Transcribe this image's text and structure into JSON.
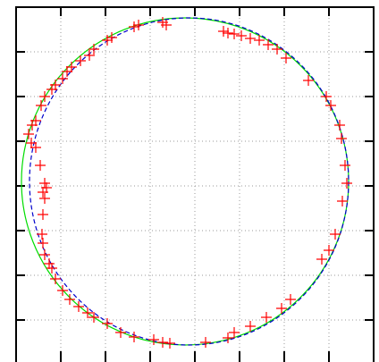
{
  "chart_data": {
    "type": "scatter",
    "color": "#ff0000",
    "x": [
      132,
      137,
      164,
      168,
      107,
      102,
      87,
      82,
      72,
      62,
      57,
      52,
      44,
      40,
      32,
      28,
      22,
      18,
      14,
      17,
      22,
      27,
      32,
      34,
      30,
      32,
      30,
      29,
      30,
      32,
      37,
      40,
      44,
      52,
      60,
      70,
      80,
      87,
      102,
      117,
      132,
      154,
      164,
      172,
      212,
      237,
      244,
      262,
      280,
      297,
      307,
      342,
      350,
      357,
      365,
      370,
      368,
      364,
      362,
      352,
      347,
      327,
      302,
      292,
      282,
      272,
      262,
      252,
      237,
      232,
      244
    ],
    "values": [
      378,
      380,
      383,
      380,
      366,
      363,
      353,
      346,
      340,
      333,
      328,
      320,
      313,
      308,
      300,
      290,
      273,
      268,
      258,
      248,
      243,
      223,
      203,
      198,
      193,
      186,
      168,
      146,
      136,
      123,
      113,
      108,
      96,
      83,
      73,
      65,
      58,
      53,
      46,
      36,
      31,
      28,
      25,
      24,
      25,
      30,
      36,
      43,
      53,
      63,
      73,
      118,
      128,
      146,
      183,
      203,
      223,
      253,
      268,
      290,
      300,
      318,
      343,
      353,
      358,
      363,
      365,
      368,
      371,
      373,
      370
    ],
    "fits": [
      {
        "cx": 189,
        "cy": 205,
        "rx": 183,
        "ry": 183,
        "color": "#00dd00",
        "dashed": false
      },
      {
        "cx": 193.5,
        "cy": 205,
        "rx": 178.5,
        "ry": 183,
        "color": "#0000cc",
        "dashed": true
      }
    ],
    "xlim": [
      0,
      400
    ],
    "ylim": [
      0,
      400
    ],
    "xticks": [
      0,
      50,
      100,
      150,
      200,
      250,
      300,
      350,
      400
    ],
    "yticks": [
      0,
      50,
      100,
      150,
      200,
      250,
      300,
      350,
      400
    ],
    "grid": true
  }
}
